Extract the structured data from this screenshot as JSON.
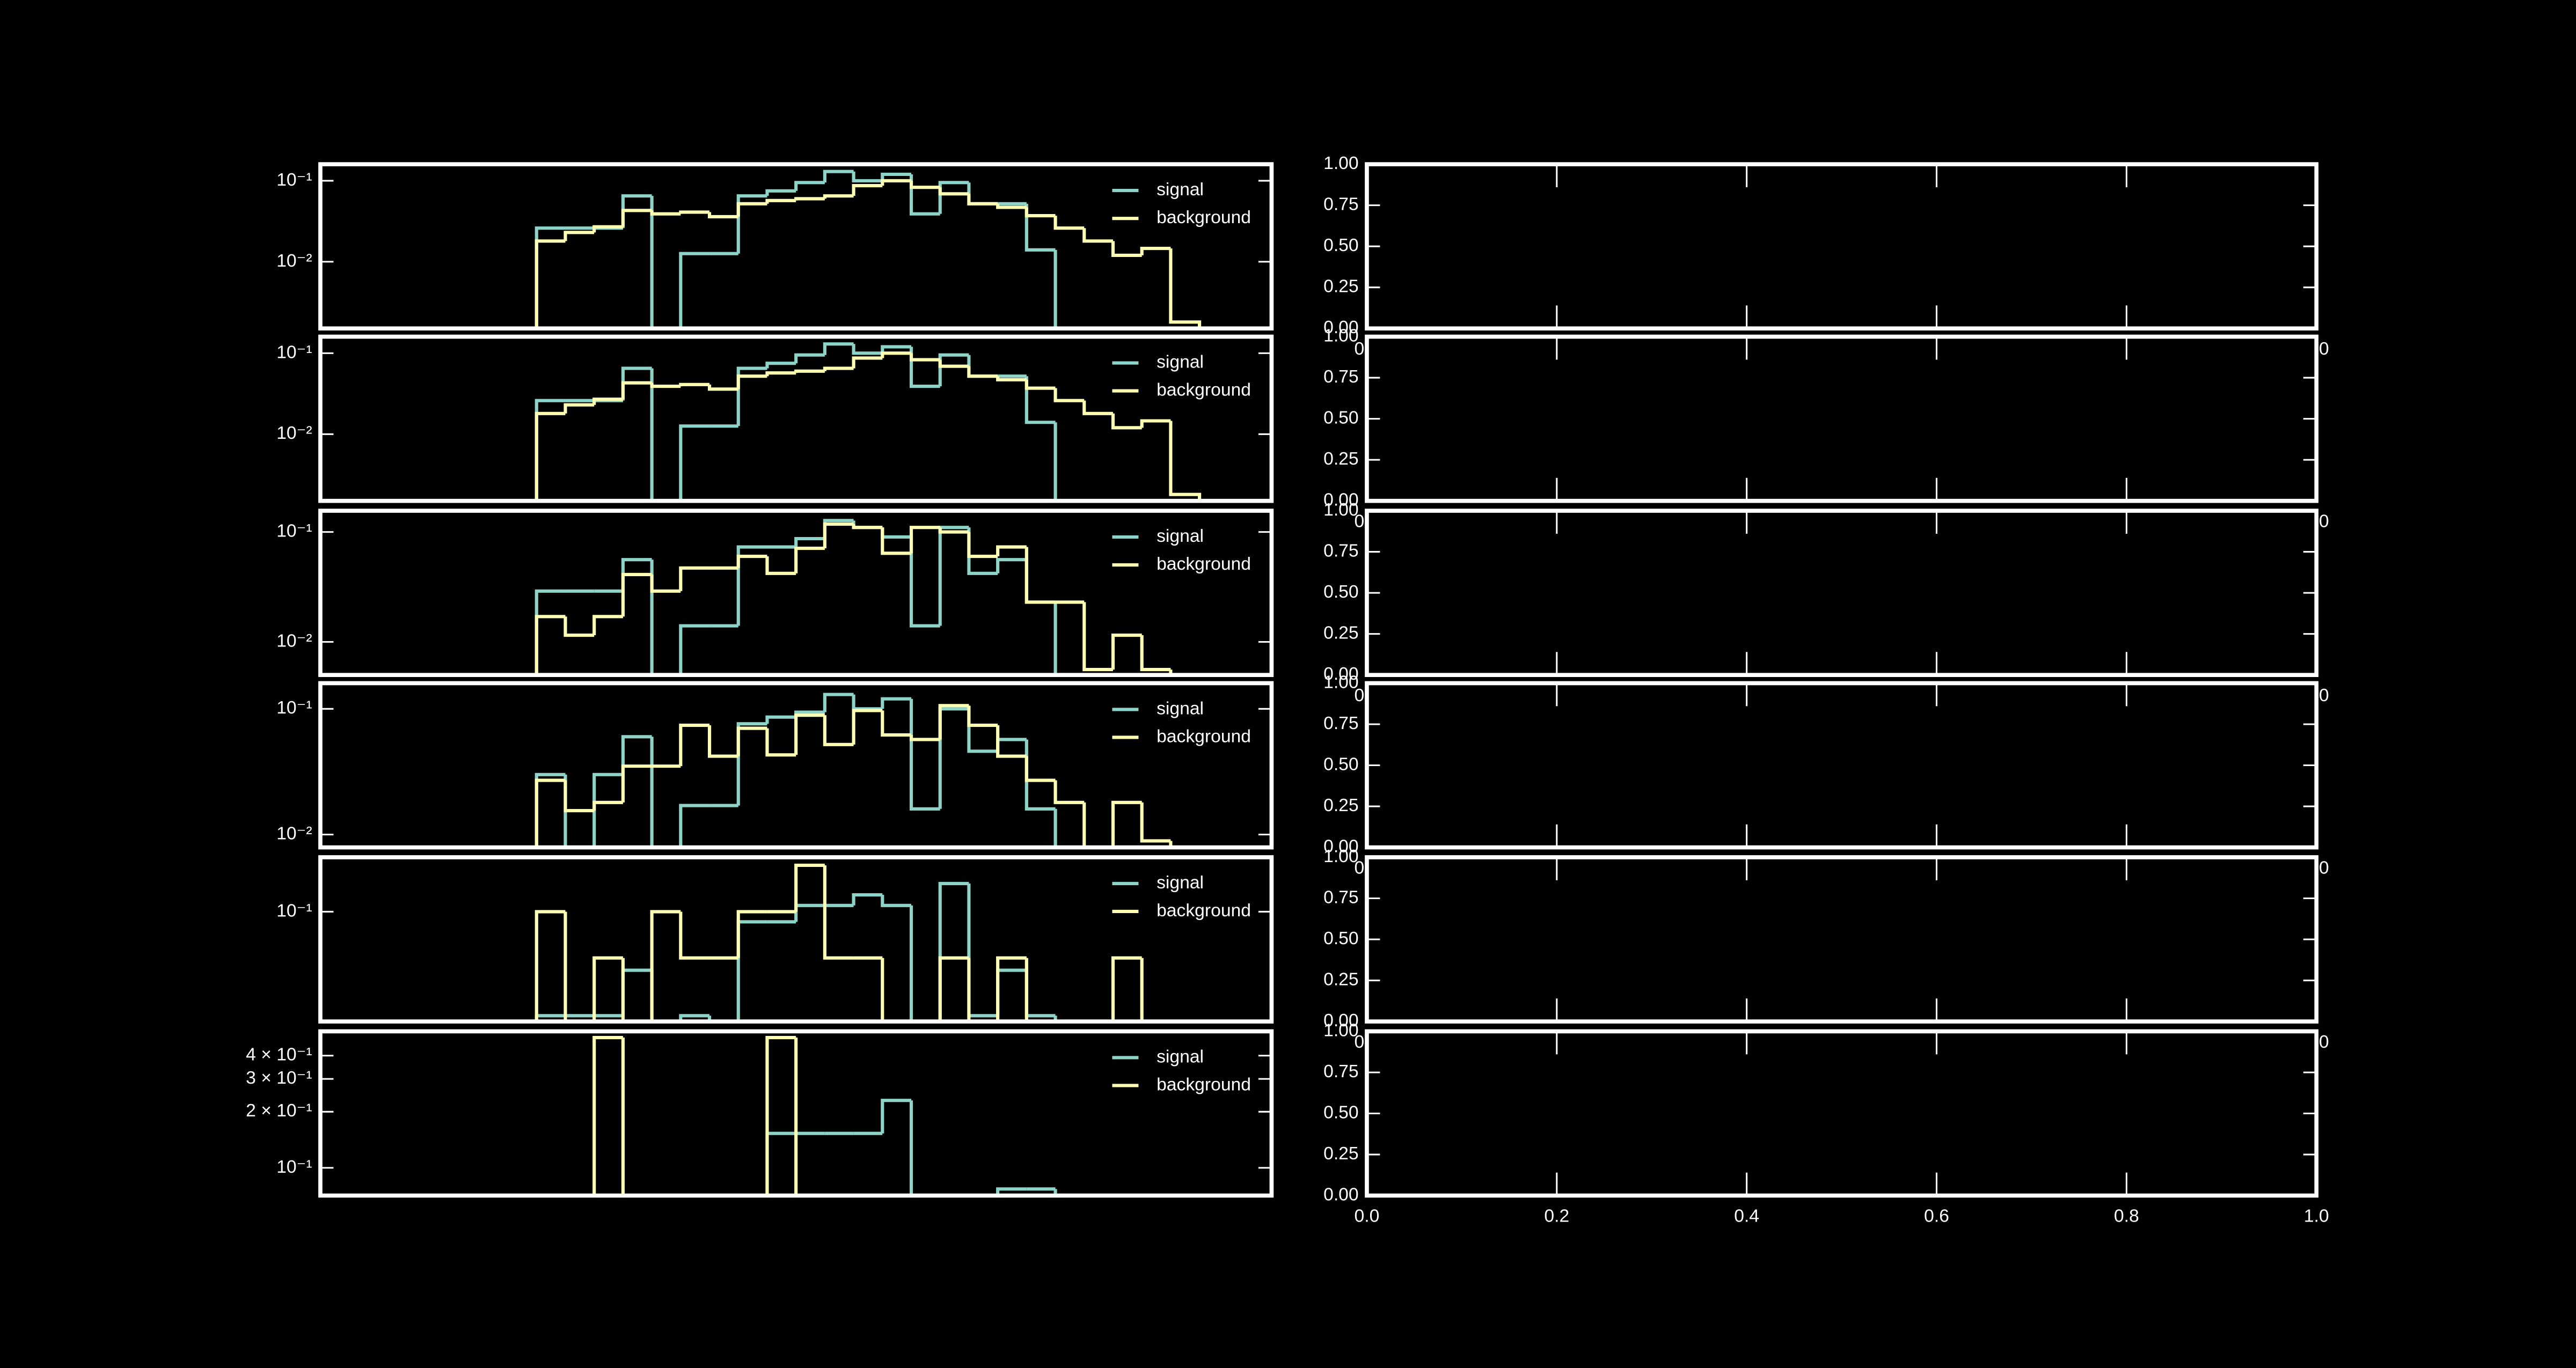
{
  "chart_data": [
    {
      "type": "histogram",
      "log_y": true,
      "legend": "upper right",
      "xlim": [
        -7.5,
        25.5
      ],
      "bins": [
        0,
        1,
        2,
        3,
        4,
        5,
        6,
        7,
        8,
        9,
        10,
        11,
        12,
        13,
        14,
        15,
        16,
        17,
        18,
        19,
        20,
        21,
        22,
        23
      ],
      "ylim": [
        0.0015,
        0.16
      ],
      "yticks": [
        {
          "value": 0.01,
          "label": "10⁻²"
        },
        {
          "value": 0.1,
          "label": "10⁻¹"
        }
      ],
      "series": [
        {
          "name": "signal",
          "color": "#8dd3c7",
          "values": [
            0.026,
            0.026,
            0.026,
            0.065,
            0,
            0.0126,
            0.0126,
            0.065,
            0.075,
            0.095,
            0.13,
            0.1,
            0.12,
            0.039,
            0.095,
            0.052,
            0.052,
            0.014,
            0,
            0,
            0,
            0,
            0
          ]
        },
        {
          "name": "background",
          "color": "#ffffb3",
          "values": [
            0.018,
            0.023,
            0.027,
            0.043,
            0.039,
            0.041,
            0.036,
            0.052,
            0.057,
            0.06,
            0.065,
            0.087,
            0.1,
            0.083,
            0.069,
            0.052,
            0.047,
            0.037,
            0.026,
            0.018,
            0.012,
            0.0146,
            0.0018
          ]
        }
      ]
    },
    {
      "type": "histogram",
      "log_y": true,
      "legend": "upper right",
      "xlim": [
        -7.5,
        25.5
      ],
      "bins": [
        0,
        1,
        2,
        3,
        4,
        5,
        6,
        7,
        8,
        9,
        10,
        11,
        12,
        13,
        14,
        15,
        16,
        17,
        18,
        19,
        20,
        21,
        22,
        23
      ],
      "ylim": [
        0.0015,
        0.16
      ],
      "yticks": [
        {
          "value": 0.01,
          "label": "10⁻²"
        },
        {
          "value": 0.1,
          "label": "10⁻¹"
        }
      ],
      "series": [
        {
          "name": "signal",
          "color": "#8dd3c7",
          "values": [
            0.026,
            0.026,
            0.026,
            0.065,
            0,
            0.0126,
            0.0126,
            0.065,
            0.075,
            0.095,
            0.13,
            0.1,
            0.12,
            0.039,
            0.095,
            0.052,
            0.052,
            0.014,
            0,
            0,
            0,
            0,
            0
          ]
        },
        {
          "name": "background",
          "color": "#ffffb3",
          "values": [
            0.018,
            0.023,
            0.027,
            0.043,
            0.039,
            0.041,
            0.036,
            0.052,
            0.057,
            0.06,
            0.065,
            0.087,
            0.1,
            0.083,
            0.069,
            0.052,
            0.047,
            0.037,
            0.026,
            0.018,
            0.012,
            0.0146,
            0.0018
          ]
        }
      ]
    },
    {
      "type": "histogram",
      "log_y": true,
      "legend": "upper right",
      "xlim": [
        -7.5,
        25.5
      ],
      "bins": [
        0,
        1,
        2,
        3,
        4,
        5,
        6,
        7,
        8,
        9,
        10,
        11,
        12,
        13,
        14,
        15,
        16,
        17,
        18,
        19,
        20,
        21,
        22,
        23
      ],
      "ylim": [
        0.005,
        0.156
      ],
      "yticks": [
        {
          "value": 0.01,
          "label": "10⁻²"
        },
        {
          "value": 0.1,
          "label": "10⁻¹"
        }
      ],
      "series": [
        {
          "name": "signal",
          "color": "#8dd3c7",
          "values": [
            0.029,
            0.029,
            0.029,
            0.056,
            0,
            0.014,
            0.014,
            0.073,
            0.073,
            0.087,
            0.127,
            0.11,
            0.09,
            0.014,
            0.11,
            0.042,
            0.056,
            0.023,
            0,
            0,
            0,
            0,
            0
          ]
        },
        {
          "name": "background",
          "color": "#ffffb3",
          "values": [
            0.017,
            0.0115,
            0.017,
            0.041,
            0.029,
            0.047,
            0.047,
            0.06,
            0.042,
            0.071,
            0.118,
            0.11,
            0.064,
            0.11,
            0.1,
            0.06,
            0.073,
            0.023,
            0.023,
            0.0056,
            0.0115,
            0.0056,
            0
          ]
        }
      ]
    },
    {
      "type": "histogram",
      "log_y": true,
      "legend": "upper right",
      "xlim": [
        -7.5,
        25.5
      ],
      "bins": [
        0,
        1,
        2,
        3,
        4,
        5,
        6,
        7,
        8,
        9,
        10,
        11,
        12,
        13,
        14,
        15,
        16,
        17,
        18,
        19,
        20,
        21,
        22,
        23
      ],
      "ylim": [
        0.0079,
        0.16
      ],
      "yticks": [
        {
          "value": 0.01,
          "label": "10⁻²"
        },
        {
          "value": 0.1,
          "label": "10⁻¹"
        }
      ],
      "series": [
        {
          "name": "signal",
          "color": "#8dd3c7",
          "values": [
            0.03,
            0,
            0.03,
            0.06,
            0,
            0.017,
            0.017,
            0.076,
            0.086,
            0.094,
            0.13,
            0.1,
            0.12,
            0.016,
            0.1,
            0.046,
            0.057,
            0.016,
            0,
            0,
            0,
            0,
            0
          ]
        },
        {
          "name": "background",
          "color": "#ffffb3",
          "values": [
            0.027,
            0.0155,
            0.018,
            0.035,
            0.035,
            0.074,
            0.042,
            0.07,
            0.043,
            0.089,
            0.052,
            0.097,
            0.062,
            0.057,
            0.106,
            0.074,
            0.042,
            0.027,
            0.018,
            0,
            0.018,
            0.0089,
            0
          ]
        }
      ]
    },
    {
      "type": "histogram",
      "log_y": true,
      "legend": "upper right",
      "xlim": [
        -7.5,
        25.5
      ],
      "bins": [
        0,
        1,
        2,
        3,
        4,
        5,
        6,
        7,
        8,
        9,
        10,
        11,
        12,
        13,
        14,
        15,
        16,
        17,
        18,
        19,
        20,
        21,
        22,
        23
      ],
      "ylim": [
        0.036,
        0.166
      ],
      "yticks": [
        {
          "value": 0.1,
          "label": "10⁻¹"
        }
      ],
      "series": [
        {
          "name": "signal",
          "color": "#8dd3c7",
          "values": [
            0.038,
            0.038,
            0.038,
            0.058,
            0,
            0.038,
            0,
            0.091,
            0.091,
            0.106,
            0.106,
            0.117,
            0.106,
            0,
            0.13,
            0.038,
            0.058,
            0.038,
            0,
            0,
            0,
            0,
            0
          ]
        },
        {
          "name": "background",
          "color": "#ffffb3",
          "values": [
            0.1,
            0,
            0.065,
            0,
            0.1,
            0.065,
            0.065,
            0.1,
            0.1,
            0.154,
            0.065,
            0.065,
            0,
            0,
            0.065,
            0,
            0.065,
            0,
            0,
            0,
            0.065,
            0,
            0
          ]
        }
      ]
    },
    {
      "type": "histogram",
      "log_y": true,
      "legend": "upper right",
      "xlim": [
        -7.5,
        25.5
      ],
      "bins": [
        0,
        1,
        2,
        3,
        4,
        5,
        6,
        7,
        8,
        9,
        10,
        11,
        12,
        13,
        14,
        15,
        16,
        17,
        18,
        19,
        20,
        21,
        22,
        23
      ],
      "ylim": [
        0.071,
        0.54
      ],
      "yticks": [
        {
          "value": 0.1,
          "label": "10⁻¹"
        },
        {
          "value": 0.2,
          "label": "2 × 10⁻¹"
        },
        {
          "value": 0.3,
          "label": "3 × 10⁻¹"
        },
        {
          "value": 0.4,
          "label": "4 × 10⁻¹"
        }
      ],
      "series": [
        {
          "name": "signal",
          "color": "#8dd3c7",
          "values": [
            0,
            0,
            0,
            0,
            0,
            0,
            0,
            0,
            0.153,
            0.153,
            0.153,
            0.153,
            0.23,
            0,
            0,
            0,
            0.077,
            0.077,
            0,
            0,
            0,
            0,
            0
          ]
        },
        {
          "name": "background",
          "color": "#ffffb3",
          "values": [
            0,
            0,
            0.5,
            0,
            0,
            0,
            0,
            0,
            0.5,
            0,
            0,
            0,
            0,
            0,
            0,
            0,
            0,
            0,
            0,
            0,
            0,
            0,
            0
          ]
        }
      ]
    },
    {
      "type": "empty",
      "xlim": [
        0,
        1
      ],
      "ylim": [
        0,
        1
      ],
      "xticks": [
        {
          "value": 0,
          "label": "0.0"
        },
        {
          "value": 0.2,
          "label": "0.2"
        },
        {
          "value": 0.4,
          "label": "0.4"
        },
        {
          "value": 0.6,
          "label": "0.6"
        },
        {
          "value": 0.8,
          "label": "0.8"
        },
        {
          "value": 1,
          "label": "1.0"
        }
      ],
      "yticks": [
        {
          "value": 0,
          "label": "0.00"
        },
        {
          "value": 0.25,
          "label": "0.25"
        },
        {
          "value": 0.5,
          "label": "0.50"
        },
        {
          "value": 0.75,
          "label": "0.75"
        },
        {
          "value": 1,
          "label": "1.00"
        }
      ]
    },
    {
      "type": "empty",
      "xlim": [
        0,
        1
      ],
      "ylim": [
        0,
        1
      ],
      "xticks": [
        {
          "value": 0,
          "label": "0.0"
        },
        {
          "value": 0.2,
          "label": "0.2"
        },
        {
          "value": 0.4,
          "label": "0.4"
        },
        {
          "value": 0.6,
          "label": "0.6"
        },
        {
          "value": 0.8,
          "label": "0.8"
        },
        {
          "value": 1,
          "label": "1.0"
        }
      ],
      "yticks": [
        {
          "value": 0,
          "label": "0.00"
        },
        {
          "value": 0.25,
          "label": "0.25"
        },
        {
          "value": 0.5,
          "label": "0.50"
        },
        {
          "value": 0.75,
          "label": "0.75"
        },
        {
          "value": 1,
          "label": "1.00"
        }
      ]
    },
    {
      "type": "empty",
      "xlim": [
        0,
        1
      ],
      "ylim": [
        0,
        1
      ],
      "xticks": [
        {
          "value": 0,
          "label": "0.0"
        },
        {
          "value": 0.2,
          "label": "0.2"
        },
        {
          "value": 0.4,
          "label": "0.4"
        },
        {
          "value": 0.6,
          "label": "0.6"
        },
        {
          "value": 0.8,
          "label": "0.8"
        },
        {
          "value": 1,
          "label": "1.0"
        }
      ],
      "yticks": [
        {
          "value": 0,
          "label": "0.00"
        },
        {
          "value": 0.25,
          "label": "0.25"
        },
        {
          "value": 0.5,
          "label": "0.50"
        },
        {
          "value": 0.75,
          "label": "0.75"
        },
        {
          "value": 1,
          "label": "1.00"
        }
      ]
    },
    {
      "type": "empty",
      "xlim": [
        0,
        1
      ],
      "ylim": [
        0,
        1
      ],
      "xticks": [
        {
          "value": 0,
          "label": "0.0"
        },
        {
          "value": 0.2,
          "label": "0.2"
        },
        {
          "value": 0.4,
          "label": "0.4"
        },
        {
          "value": 0.6,
          "label": "0.6"
        },
        {
          "value": 0.8,
          "label": "0.8"
        },
        {
          "value": 1,
          "label": "1.0"
        }
      ],
      "yticks": [
        {
          "value": 0,
          "label": "0.00"
        },
        {
          "value": 0.25,
          "label": "0.25"
        },
        {
          "value": 0.5,
          "label": "0.50"
        },
        {
          "value": 0.75,
          "label": "0.75"
        },
        {
          "value": 1,
          "label": "1.00"
        }
      ]
    },
    {
      "type": "empty",
      "xlim": [
        0,
        1
      ],
      "ylim": [
        0,
        1
      ],
      "xticks": [
        {
          "value": 0,
          "label": "0.0"
        },
        {
          "value": 0.2,
          "label": "0.2"
        },
        {
          "value": 0.4,
          "label": "0.4"
        },
        {
          "value": 0.6,
          "label": "0.6"
        },
        {
          "value": 0.8,
          "label": "0.8"
        },
        {
          "value": 1,
          "label": "1.0"
        }
      ],
      "yticks": [
        {
          "value": 0,
          "label": "0.00"
        },
        {
          "value": 0.25,
          "label": "0.25"
        },
        {
          "value": 0.5,
          "label": "0.50"
        },
        {
          "value": 0.75,
          "label": "0.75"
        },
        {
          "value": 1,
          "label": "1.00"
        }
      ]
    },
    {
      "type": "empty",
      "xlim": [
        0,
        1
      ],
      "ylim": [
        0,
        1
      ],
      "xticks": [
        {
          "value": 0,
          "label": "0.0"
        },
        {
          "value": 0.2,
          "label": "0.2"
        },
        {
          "value": 0.4,
          "label": "0.4"
        },
        {
          "value": 0.6,
          "label": "0.6"
        },
        {
          "value": 0.8,
          "label": "0.8"
        },
        {
          "value": 1,
          "label": "1.0"
        }
      ],
      "yticks": [
        {
          "value": 0,
          "label": "0.00"
        },
        {
          "value": 0.25,
          "label": "0.25"
        },
        {
          "value": 0.5,
          "label": "0.50"
        },
        {
          "value": 0.75,
          "label": "0.75"
        },
        {
          "value": 1,
          "label": "1.00"
        }
      ]
    }
  ]
}
